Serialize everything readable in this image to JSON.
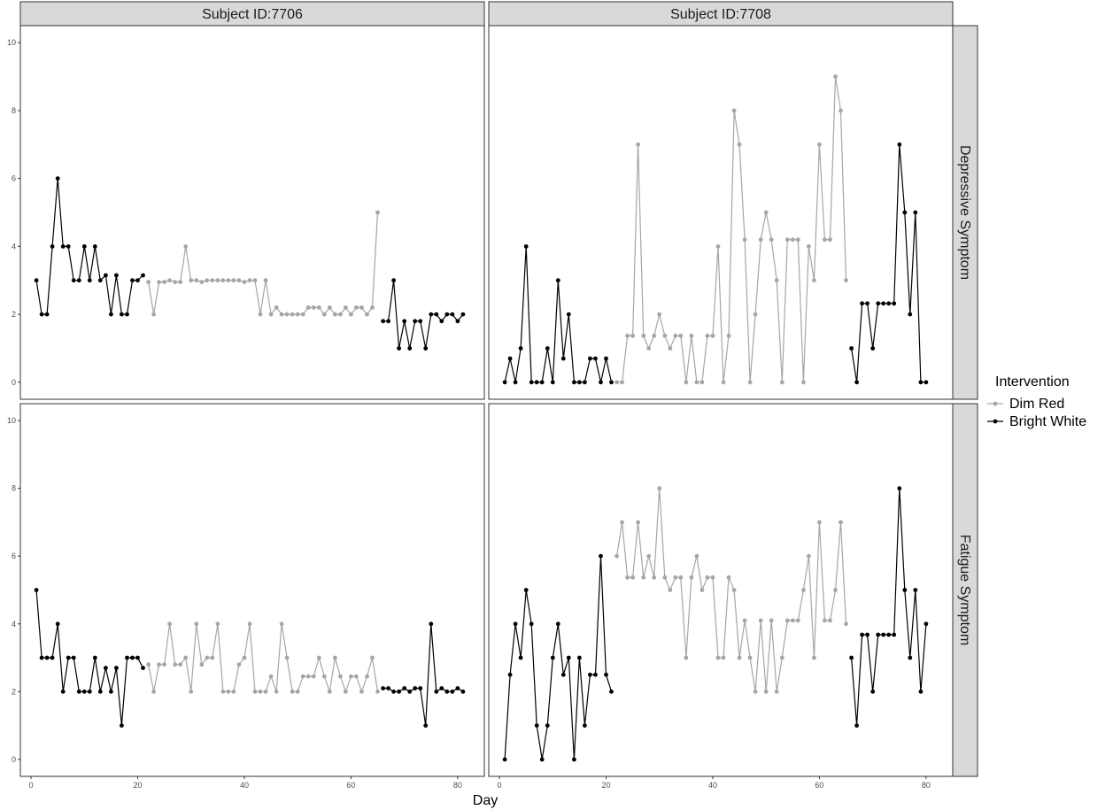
{
  "chart_data": {
    "type": "line",
    "xlabel": "Day",
    "xlim": [
      -2,
      85
    ],
    "ylim": [
      -0.5,
      10.5
    ],
    "xticks": [
      0,
      20,
      40,
      60,
      80
    ],
    "yticks": [
      0,
      2,
      4,
      6,
      8,
      10
    ],
    "legend": {
      "title": "Intervention",
      "placement": "right",
      "entries": [
        {
          "name": "Dim Red",
          "color": "#a6a6a6"
        },
        {
          "name": "Bright White",
          "color": "#000000"
        }
      ]
    },
    "columns": [
      "Subject ID:7706",
      "Subject ID:7708"
    ],
    "rows": [
      "Depressive Symptom",
      "Fatigue Symptom"
    ],
    "panels": [
      {
        "col": 0,
        "row": 0,
        "segments": [
          {
            "name": "Bright White",
            "x": [
              1,
              2,
              3,
              4,
              5,
              6,
              7,
              8,
              9,
              10,
              11,
              12,
              13,
              14,
              15,
              16,
              17,
              18,
              19,
              20,
              21
            ],
            "y": [
              3,
              2,
              2,
              4,
              6,
              4,
              4,
              3,
              3,
              4,
              3,
              4,
              3,
              3.15,
              2,
              3.15,
              2,
              2,
              3,
              3,
              3.15
            ]
          },
          {
            "name": "Dim Red",
            "x": [
              22,
              23,
              24,
              25,
              26,
              27,
              28,
              29,
              30,
              31,
              32,
              33,
              34,
              35,
              36,
              37,
              38,
              39,
              40,
              41,
              42,
              43,
              44,
              45,
              46,
              47,
              48,
              49,
              50,
              51,
              52,
              53,
              54,
              55,
              56,
              57,
              58,
              59,
              60,
              61,
              62,
              63,
              64,
              65
            ],
            "y": [
              2.95,
              2,
              2.95,
              2.95,
              3,
              2.95,
              2.95,
              4,
              3,
              3,
              2.95,
              3,
              3,
              3,
              3,
              3,
              3,
              3,
              2.95,
              3,
              3,
              2,
              3,
              2,
              2.2,
              2,
              2,
              2,
              2,
              2,
              2.2,
              2.2,
              2.2,
              2,
              2.2,
              2,
              2,
              2.2,
              2,
              2.2,
              2.2,
              2,
              2.2,
              5
            ]
          },
          {
            "name": "Bright White",
            "x": [
              66,
              67,
              68,
              69,
              70,
              71,
              72,
              73,
              74,
              75,
              76,
              77,
              78,
              79,
              80,
              81
            ],
            "y": [
              1.8,
              1.8,
              3,
              1,
              1.8,
              1,
              1.8,
              1.8,
              1,
              2,
              2,
              1.8,
              2,
              2,
              1.8,
              2
            ]
          }
        ]
      },
      {
        "col": 0,
        "row": 1,
        "segments": [
          {
            "name": "Bright White",
            "x": [
              1,
              2,
              3,
              4,
              5,
              6,
              7,
              8,
              9,
              10,
              11,
              12,
              13,
              14,
              15,
              16,
              17,
              18,
              19,
              20,
              21
            ],
            "y": [
              5,
              3,
              3,
              3,
              4,
              2,
              3,
              3,
              2,
              2,
              2,
              3,
              2,
              2.7,
              2,
              2.7,
              1,
              3,
              3,
              3,
              2.7
            ]
          },
          {
            "name": "Dim Red",
            "x": [
              22,
              23,
              24,
              25,
              26,
              27,
              28,
              29,
              30,
              31,
              32,
              33,
              34,
              35,
              36,
              37,
              38,
              39,
              40,
              41,
              42,
              43,
              44,
              45,
              46,
              47,
              48,
              49,
              50,
              51,
              52,
              53,
              54,
              55,
              56,
              57,
              58,
              59,
              60,
              61,
              62,
              63,
              64,
              65
            ],
            "y": [
              2.8,
              2,
              2.8,
              2.8,
              4,
              2.8,
              2.8,
              3,
              2,
              4,
              2.8,
              3,
              3,
              4,
              2,
              2,
              2,
              2.8,
              3,
              4,
              2,
              2,
              2,
              2.45,
              2,
              4,
              3,
              2,
              2,
              2.45,
              2.45,
              2.45,
              3,
              2.45,
              2,
              3,
              2.45,
              2,
              2.45,
              2.45,
              2,
              2.45,
              3,
              2
            ]
          },
          {
            "name": "Bright White",
            "x": [
              66,
              67,
              68,
              69,
              70,
              71,
              72,
              73,
              74,
              75,
              76,
              77,
              78,
              79,
              80,
              81
            ],
            "y": [
              2.1,
              2.1,
              2,
              2,
              2.1,
              2,
              2.1,
              2.1,
              1,
              4,
              2,
              2.1,
              2,
              2,
              2.1,
              2
            ]
          }
        ]
      },
      {
        "col": 1,
        "row": 0,
        "segments": [
          {
            "name": "Bright White",
            "x": [
              1,
              2,
              3,
              4,
              5,
              6,
              7,
              8,
              9,
              10,
              11,
              12,
              13,
              14,
              15,
              16,
              17,
              18,
              19,
              20,
              21
            ],
            "y": [
              0,
              0.7,
              0,
              1,
              4,
              0,
              0,
              0,
              1,
              0,
              3,
              0.7,
              2,
              0,
              0,
              0,
              0.7,
              0.7,
              0,
              0.7,
              0
            ]
          },
          {
            "name": "Dim Red",
            "x": [
              22,
              23,
              24,
              25,
              26,
              27,
              28,
              29,
              30,
              31,
              32,
              33,
              34,
              35,
              36,
              37,
              38,
              39,
              40,
              41,
              42,
              43,
              44,
              45,
              46,
              47,
              48,
              49,
              50,
              51,
              52,
              53,
              54,
              55,
              56,
              57,
              58,
              59,
              60,
              61,
              62,
              63,
              64,
              65
            ],
            "y": [
              0,
              0,
              1.37,
              1.37,
              7,
              1.37,
              1,
              1.37,
              2,
              1.37,
              1,
              1.37,
              1.37,
              0,
              1.37,
              0,
              0,
              1.37,
              1.37,
              4,
              0,
              1.37,
              8,
              7,
              4.2,
              0,
              2,
              4.2,
              5,
              4.2,
              3,
              0,
              4.2,
              4.2,
              4.2,
              0,
              4,
              3,
              7,
              4.2,
              4.2,
              9,
              8,
              3
            ]
          },
          {
            "name": "Bright White",
            "x": [
              66,
              67,
              68,
              69,
              70,
              71,
              72,
              73,
              74,
              75,
              76,
              77,
              78,
              79,
              80
            ],
            "y": [
              1,
              0,
              2.32,
              2.32,
              1,
              2.32,
              2.32,
              2.32,
              2.32,
              7,
              5,
              2,
              5,
              0,
              0
            ]
          }
        ]
      },
      {
        "col": 1,
        "row": 1,
        "segments": [
          {
            "name": "Bright White",
            "x": [
              1,
              2,
              3,
              4,
              5,
              6,
              7,
              8,
              9,
              10,
              11,
              12,
              13,
              14,
              15,
              16,
              17,
              18,
              19,
              20,
              21
            ],
            "y": [
              0,
              2.5,
              4,
              3,
              5,
              4,
              1,
              0,
              1,
              3,
              4,
              2.5,
              3,
              0,
              3,
              1,
              2.5,
              2.5,
              6,
              2.5,
              2
            ]
          },
          {
            "name": "Dim Red",
            "x": [
              22,
              23,
              24,
              25,
              26,
              27,
              28,
              29,
              30,
              31,
              32,
              33,
              34,
              35,
              36,
              37,
              38,
              39,
              40,
              41,
              42,
              43,
              44,
              45,
              46,
              47,
              48,
              49,
              50,
              51,
              52,
              53,
              54,
              55,
              56,
              57,
              58,
              59,
              60,
              61,
              62,
              63,
              64,
              65
            ],
            "y": [
              6,
              7,
              5.37,
              5.37,
              7,
              5.37,
              6,
              5.37,
              8,
              5.37,
              5,
              5.37,
              5.37,
              3,
              5.37,
              6,
              5,
              5.37,
              5.37,
              3,
              3,
              5.37,
              5,
              3,
              4.1,
              3,
              2,
              4.1,
              2,
              4.1,
              2,
              3,
              4.1,
              4.1,
              4.1,
              5,
              6,
              3,
              7,
              4.1,
              4.1,
              5,
              7,
              4
            ]
          },
          {
            "name": "Bright White",
            "x": [
              66,
              67,
              68,
              69,
              70,
              71,
              72,
              73,
              74,
              75,
              76,
              77,
              78,
              79,
              80
            ],
            "y": [
              3,
              1,
              3.68,
              3.68,
              2,
              3.68,
              3.68,
              3.68,
              3.68,
              8,
              5,
              3,
              5,
              2,
              4
            ]
          }
        ]
      }
    ]
  }
}
